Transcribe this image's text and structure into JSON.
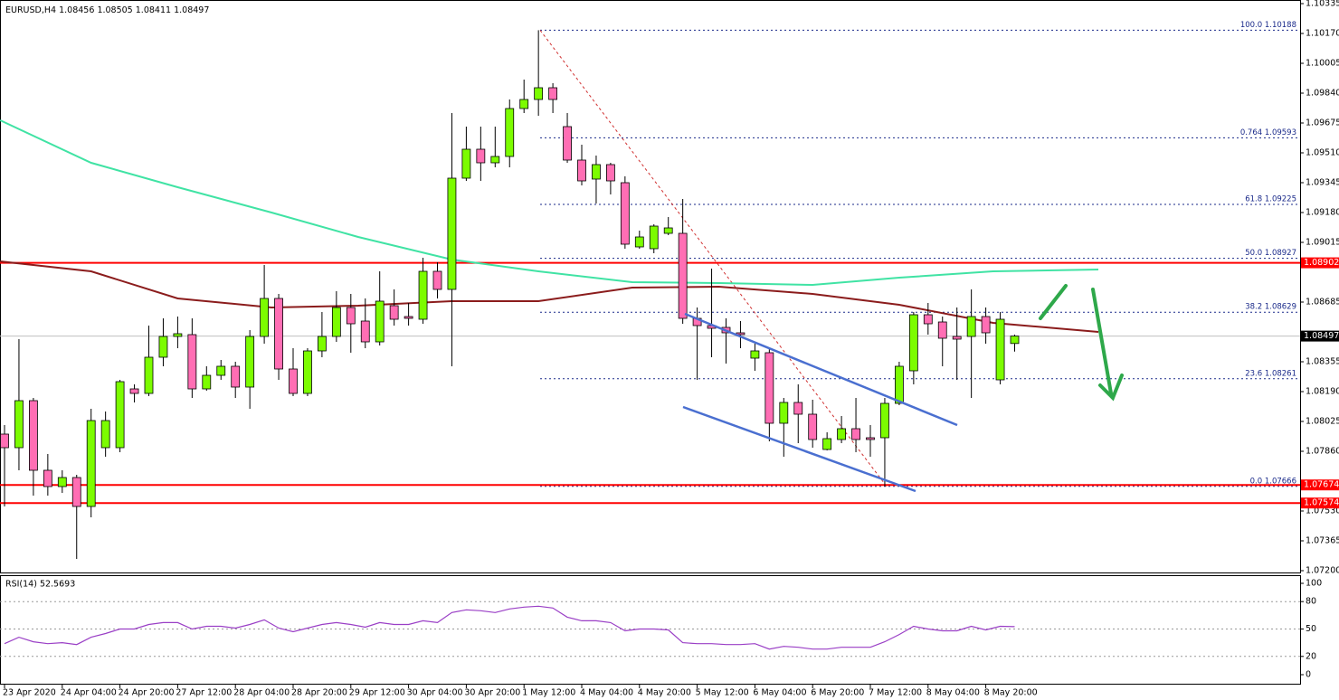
{
  "chart_data": {
    "type": "candlestick",
    "symbol": "EURUSD,H4",
    "categories": [
      "23 Apr 2020",
      null,
      null,
      null,
      "24 Apr 04:00",
      null,
      null,
      null,
      "24 Apr 20:00",
      null,
      null,
      null,
      "27 Apr 12:00",
      null,
      null,
      null,
      "28 Apr 04:00",
      null,
      null,
      null,
      "28 Apr 20:00",
      null,
      null,
      null,
      "29 Apr 12:00",
      null,
      null,
      null,
      "30 Apr 04:00",
      null,
      null,
      null,
      "30 Apr 20:00",
      null,
      null,
      null,
      "1 May 12:00",
      null,
      null,
      null,
      "4 May 04:00",
      null,
      null,
      null,
      "4 May 20:00",
      null,
      null,
      null,
      "5 May 12:00",
      null,
      null,
      null,
      "6 May 04:00",
      null,
      null,
      null,
      "6 May 20:00",
      null,
      null,
      null,
      "7 May 12:00",
      null,
      null,
      null,
      "8 May 04:00",
      null,
      null,
      null,
      "8 May 20:00",
      null,
      null
    ],
    "open": [
      1.07955,
      1.0788,
      1.0814,
      1.07755,
      1.07665,
      1.07715,
      1.07555,
      1.0788,
      1.0788,
      1.08205,
      1.0818,
      1.0838,
      1.08495,
      1.08505,
      1.08205,
      1.0828,
      1.0833,
      1.08215,
      1.08495,
      1.08705,
      1.08315,
      1.0818,
      1.08415,
      1.08495,
      1.08655,
      1.0858,
      1.08465,
      1.08665,
      1.08605,
      1.0859,
      1.08855,
      1.08755,
      1.0937,
      1.0953,
      1.09455,
      1.0949,
      1.09755,
      1.09805,
      1.0987,
      1.09655,
      1.0947,
      1.09365,
      1.09445,
      1.09345,
      1.0899,
      1.0898,
      1.09065,
      1.09065,
      1.08595,
      1.08555,
      1.08545,
      1.08515,
      1.08375,
      1.08405,
      1.08015,
      1.0813,
      1.08065,
      1.0787,
      1.07925,
      1.07985,
      1.07935,
      1.07935,
      1.08125,
      1.08305,
      1.08615,
      1.08575,
      1.08495,
      1.08495,
      1.08605,
      1.08255,
      1.08456
    ],
    "high": [
      1.08005,
      1.0848,
      1.08155,
      1.07845,
      1.07755,
      1.0773,
      1.08095,
      1.0808,
      1.08255,
      1.0823,
      1.08555,
      1.08595,
      1.08605,
      1.08595,
      1.0833,
      1.08365,
      1.08355,
      1.0853,
      1.0889,
      1.0873,
      1.0843,
      1.0843,
      1.0863,
      1.08745,
      1.0873,
      1.08705,
      1.08855,
      1.08755,
      1.0868,
      1.0893,
      1.08905,
      1.0973,
      1.09655,
      1.09655,
      1.09655,
      1.09805,
      1.09915,
      1.10188,
      1.09895,
      1.0973,
      1.09555,
      1.09495,
      1.09455,
      1.0938,
      1.0908,
      1.09115,
      1.09155,
      1.09255,
      1.08655,
      1.0887,
      1.08595,
      1.0858,
      1.08455,
      1.0843,
      1.08155,
      1.0823,
      1.08145,
      1.07965,
      1.08055,
      1.08155,
      1.08005,
      1.08155,
      1.08355,
      1.0863,
      1.0868,
      1.08605,
      1.08655,
      1.08755,
      1.08655,
      1.0863,
      1.08505
    ],
    "low": [
      1.07555,
      1.07755,
      1.07615,
      1.07615,
      1.0763,
      1.07265,
      1.07495,
      1.0783,
      1.07855,
      1.0813,
      1.08165,
      1.0833,
      1.0843,
      1.08155,
      1.08195,
      1.08255,
      1.08155,
      1.08095,
      1.08455,
      1.08255,
      1.08165,
      1.08165,
      1.0838,
      1.08465,
      1.08405,
      1.0843,
      1.08445,
      1.08555,
      1.08555,
      1.08565,
      1.08705,
      1.0833,
      1.09355,
      1.09355,
      1.0943,
      1.0943,
      1.0973,
      1.09715,
      1.0973,
      1.09455,
      1.0933,
      1.0923,
      1.0928,
      1.0898,
      1.0898,
      1.08955,
      1.09055,
      1.08565,
      1.08255,
      1.0838,
      1.08345,
      1.0843,
      1.08305,
      1.07915,
      1.0783,
      1.07905,
      1.0788,
      1.07865,
      1.07905,
      1.07855,
      1.0783,
      1.07666,
      1.08115,
      1.0823,
      1.08505,
      1.0833,
      1.08255,
      1.08155,
      1.08455,
      1.0823,
      1.08411
    ],
    "close": [
      1.0788,
      1.0814,
      1.07755,
      1.07665,
      1.07715,
      1.07555,
      1.0803,
      1.0803,
      1.08245,
      1.0818,
      1.0838,
      1.08495,
      1.0851,
      1.08205,
      1.0828,
      1.0833,
      1.08215,
      1.08495,
      1.08705,
      1.08315,
      1.0818,
      1.08415,
      1.08495,
      1.08655,
      1.08565,
      1.08465,
      1.0869,
      1.0859,
      1.08595,
      1.08855,
      1.08755,
      1.0937,
      1.0953,
      1.09455,
      1.0949,
      1.09755,
      1.09805,
      1.0987,
      1.09805,
      1.0947,
      1.09355,
      1.09445,
      1.09355,
      1.09005,
      1.09045,
      1.09105,
      1.09095,
      1.08595,
      1.08555,
      1.0854,
      1.08515,
      1.08505,
      1.08415,
      1.08015,
      1.0813,
      1.08065,
      1.07925,
      1.0793,
      1.07985,
      1.07925,
      1.07925,
      1.08125,
      1.0833,
      1.08615,
      1.08565,
      1.08485,
      1.0848,
      1.08605,
      1.08515,
      1.0859,
      1.08497
    ],
    "up_color": "#7cfc00",
    "down_color": "#ff6eb4",
    "ylim": [
      1.0719,
      1.10355
    ],
    "yticks": [
      1.10335,
      {
        "value": 1.1017,
        "label": "1.10170"
      },
      1.10005,
      {
        "value": 1.0984,
        "label": "1.09840"
      },
      1.09675,
      {
        "value": 1.0951,
        "label": "1.09510"
      },
      1.09345,
      {
        "value": 1.0918,
        "label": "1.09180"
      },
      1.09015,
      1.08685,
      1.08355,
      {
        "value": 1.0819,
        "label": "1.08190"
      },
      1.08025,
      {
        "value": 1.0786,
        "label": "1.07860"
      },
      {
        "value": 1.0753,
        "label": "1.07530"
      },
      1.07365,
      {
        "value": 1.072,
        "label": "1.07200"
      }
    ],
    "grid": false,
    "indicators": [
      {
        "color": "#40e3a4",
        "x": [
          -0.3,
          6,
          12,
          18.5,
          24.5,
          31,
          37,
          43.5,
          49.5,
          56,
          62,
          68.5,
          75.8
        ],
        "values": [
          1.0969,
          1.09455,
          1.0932,
          1.0918,
          1.09045,
          1.0892,
          1.08855,
          1.08795,
          1.0879,
          1.0878,
          1.0882,
          1.08855,
          1.08865
        ]
      },
      {
        "color": "#8b1c1c",
        "x": [
          -0.3,
          6,
          12,
          18.5,
          24.5,
          31,
          37,
          43.5,
          49.5,
          56,
          62,
          68.5,
          75.8
        ],
        "values": [
          1.0891,
          1.08855,
          1.08705,
          1.08655,
          1.08665,
          1.0869,
          1.0869,
          1.08765,
          1.0877,
          1.0873,
          1.0867,
          1.0857,
          1.0852
        ]
      }
    ],
    "levels": [
      1.08902,
      1.07674,
      1.07574
    ],
    "level_color": "#ff0000",
    "fib_levels": [
      {
        "label": "100.0 1.10188",
        "value": 1.10188
      },
      {
        "label": "0.764 1.09593",
        "value": 1.09593
      },
      {
        "label": "61.8 1.09225",
        "value": 1.09225
      },
      {
        "label": "50.0 1.08927",
        "value": 1.08927
      },
      {
        "label": "38.2 1.08629",
        "value": 1.08629
      },
      {
        "label": "23.6 1.08261",
        "value": 1.08261
      },
      {
        "label": "0.0 1.07666",
        "value": 1.07666
      }
    ],
    "rsi": {
      "title": "RSI(14) 52.5693",
      "color": "#9a3fc6",
      "values": [
        34,
        41,
        36,
        34,
        35,
        33,
        41,
        45,
        50,
        50,
        55,
        57,
        57,
        50,
        53,
        53,
        51,
        55,
        60,
        51,
        47,
        51,
        55,
        57,
        55,
        52,
        57,
        55,
        55,
        59,
        57,
        68,
        71,
        70,
        68,
        72,
        74,
        75,
        73,
        63,
        59,
        59,
        57,
        48,
        50,
        50,
        49,
        35,
        34,
        34,
        33,
        33,
        34,
        28,
        31,
        30,
        28,
        28,
        30,
        30,
        30,
        36,
        44,
        53,
        50,
        48,
        48,
        53,
        49,
        53,
        52.5693
      ],
      "ylim": [
        0,
        100
      ],
      "yticks": [
        100,
        80,
        50,
        20,
        0
      ],
      "levels": [
        80,
        50,
        20
      ]
    }
  }
}
